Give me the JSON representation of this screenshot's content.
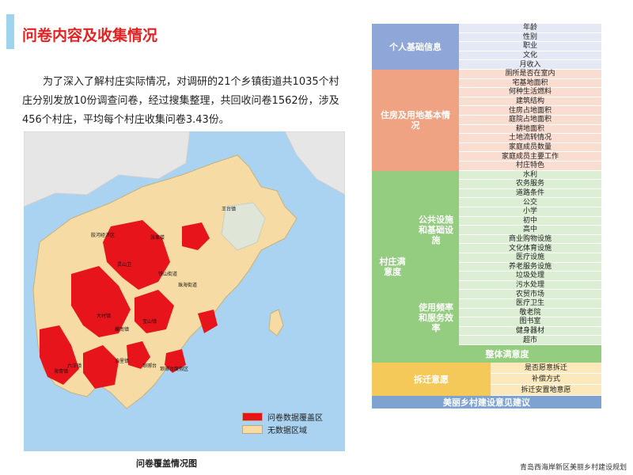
{
  "header": {
    "title": "问卷内容及收集情况"
  },
  "intro": {
    "line1": "为了深入了解村庄实际情况，对调研的21个乡镇街道共1035个村",
    "line2": "庄分别发放10份调查问卷，经过搜集整理，共回收问卷1562份，涉及",
    "line3": "456个村庄，平均每个村庄收集问卷3.43份。"
  },
  "map": {
    "town_labels": [
      "王台镇",
      "胶河经济区",
      "张家楼",
      "铁山街道",
      "珠海街道",
      "灵山卫",
      "大村镇",
      "藏南镇",
      "宝山镇",
      "六汪镇",
      "海青镇",
      "泊里镇",
      "琅琊台",
      "琅琊台度假区"
    ],
    "legend": [
      {
        "label": "问卷数据覆盖区",
        "color": "#e8141c"
      },
      {
        "label": "无数据区域",
        "color": "#f6dca4"
      }
    ],
    "caption": "问卷覆盖情况图"
  },
  "table": {
    "sections": [
      {
        "label": "个人基础信息",
        "color": "#8ea7d8",
        "item_color": "#e4e9f5",
        "items": [
          "年龄",
          "性别",
          "职业",
          "文化",
          "月收入"
        ]
      },
      {
        "label": "住房及用地基本情况",
        "color": "#f0a383",
        "item_color": "#f9ddd0",
        "items": [
          "厕所是否在室内",
          "宅基地面积",
          "何种生活燃料",
          "建筑结构",
          "住房占地面积",
          "庭院占地面积",
          "耕地面积",
          "土地流转情况",
          "家庭成员数量",
          "家庭成员主要工作",
          "村庄特色"
        ]
      },
      {
        "label": "村庄满意度",
        "color": "#94cc80",
        "item_color": "#dcefd5",
        "subsections": [
          {
            "label": "公共设施和基础设施",
            "items": [
              "水利",
              "农务服务",
              "道路条件",
              "公交",
              "小学",
              "初中",
              "高中",
              "商业购物设施",
              "文化体育设施",
              "医疗设施",
              "养老服务设施",
              "垃圾处理",
              "污水处理"
            ]
          },
          {
            "label": "使用频率和服务效率",
            "items": [
              "农贸市场",
              "医疗卫生",
              "敬老院",
              "图书室",
              "健身器材",
              "超市"
            ]
          }
        ],
        "summary": "整体满意度"
      },
      {
        "label": "拆迁意愿",
        "color": "#f5c85a",
        "item_color": "#fbe9bb",
        "items": [
          "是否愿意拆迁",
          "补偿方式",
          "拆迁安置地意愿"
        ]
      }
    ],
    "footer_row": {
      "label": "美丽乡村建设意见建议",
      "color": "#7fa3d1"
    }
  },
  "footer": {
    "text": "青岛西海岸新区美丽乡村建设规划"
  }
}
